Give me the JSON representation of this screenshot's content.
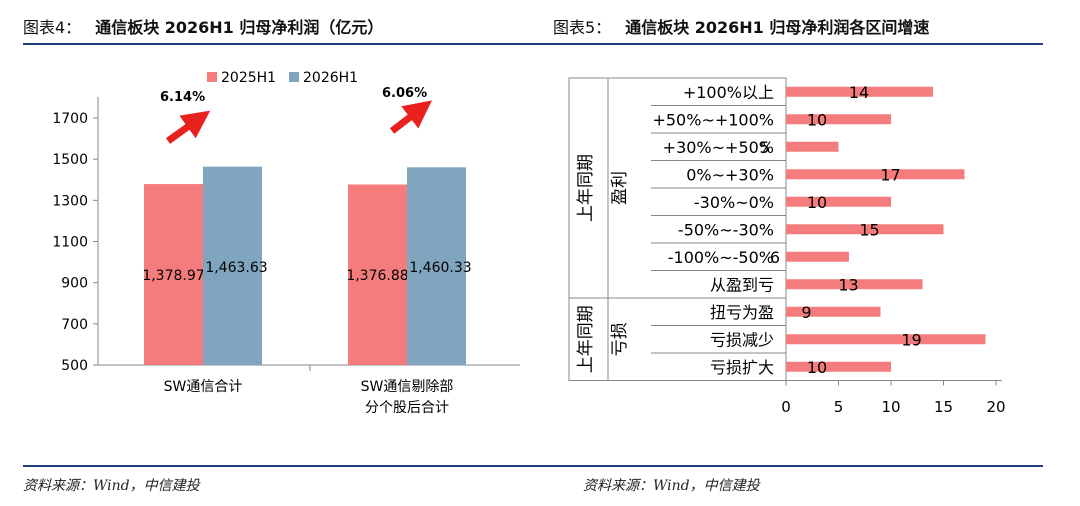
{
  "left": {
    "title_num": "图表4：",
    "title": "通信板块 2026H1 归母净利润（亿元）",
    "source": "资料来源：Wind，中信建投"
  },
  "right": {
    "title_num": "图表5：",
    "title": "通信板块 2026H1 归母净利润各区间增速",
    "source": "资料来源：Wind，中信建投"
  },
  "colors": {
    "s1": "#f47c7c",
    "s2": "#7fa5bf",
    "arrow": "#e8211e",
    "rule": "#1f3f7a",
    "hbar": "#f47c7c"
  },
  "chart_data": [
    {
      "type": "bar",
      "categories": [
        "SW通信合计",
        "SW通信剔除部分个股后合计"
      ],
      "category_lines": [
        [
          "SW通信合计"
        ],
        [
          "SW通信剔除部",
          "分个股后合计"
        ]
      ],
      "series": [
        {
          "name": "2025H1",
          "values": [
            1378.97,
            1376.88
          ],
          "labels": [
            "1,378.97",
            "1,376.88"
          ]
        },
        {
          "name": "2026H1",
          "values": [
            1463.63,
            1460.33
          ],
          "labels": [
            "1,463.63",
            "1,460.33"
          ]
        }
      ],
      "annotations": [
        "6.14%",
        "6.06%"
      ],
      "yticks": [
        500,
        700,
        900,
        1100,
        1300,
        1500,
        1700
      ],
      "ylim": [
        500,
        1800
      ],
      "grid": false,
      "legend": "top"
    },
    {
      "type": "bar",
      "orientation": "horizontal",
      "categories": [
        "+100%以上",
        "+50%~+100%",
        "+30%~+50%",
        "0%~+30%",
        "-30%~0%",
        "-50%~-30%",
        "-100%~-50%",
        "从盈到亏",
        "扭亏为盈",
        "亏损减少",
        "亏损扩大"
      ],
      "values": [
        14,
        10,
        5,
        17,
        10,
        15,
        6,
        13,
        9,
        19,
        10
      ],
      "groups": [
        {
          "name_lines": [
            "上年同期",
            "盈利"
          ],
          "count": 8
        },
        {
          "name_lines": [
            "上年同期",
            "亏损"
          ],
          "count": 3
        }
      ],
      "xticks": [
        0,
        5,
        10,
        15,
        20
      ],
      "xlim": [
        0,
        20
      ]
    }
  ]
}
